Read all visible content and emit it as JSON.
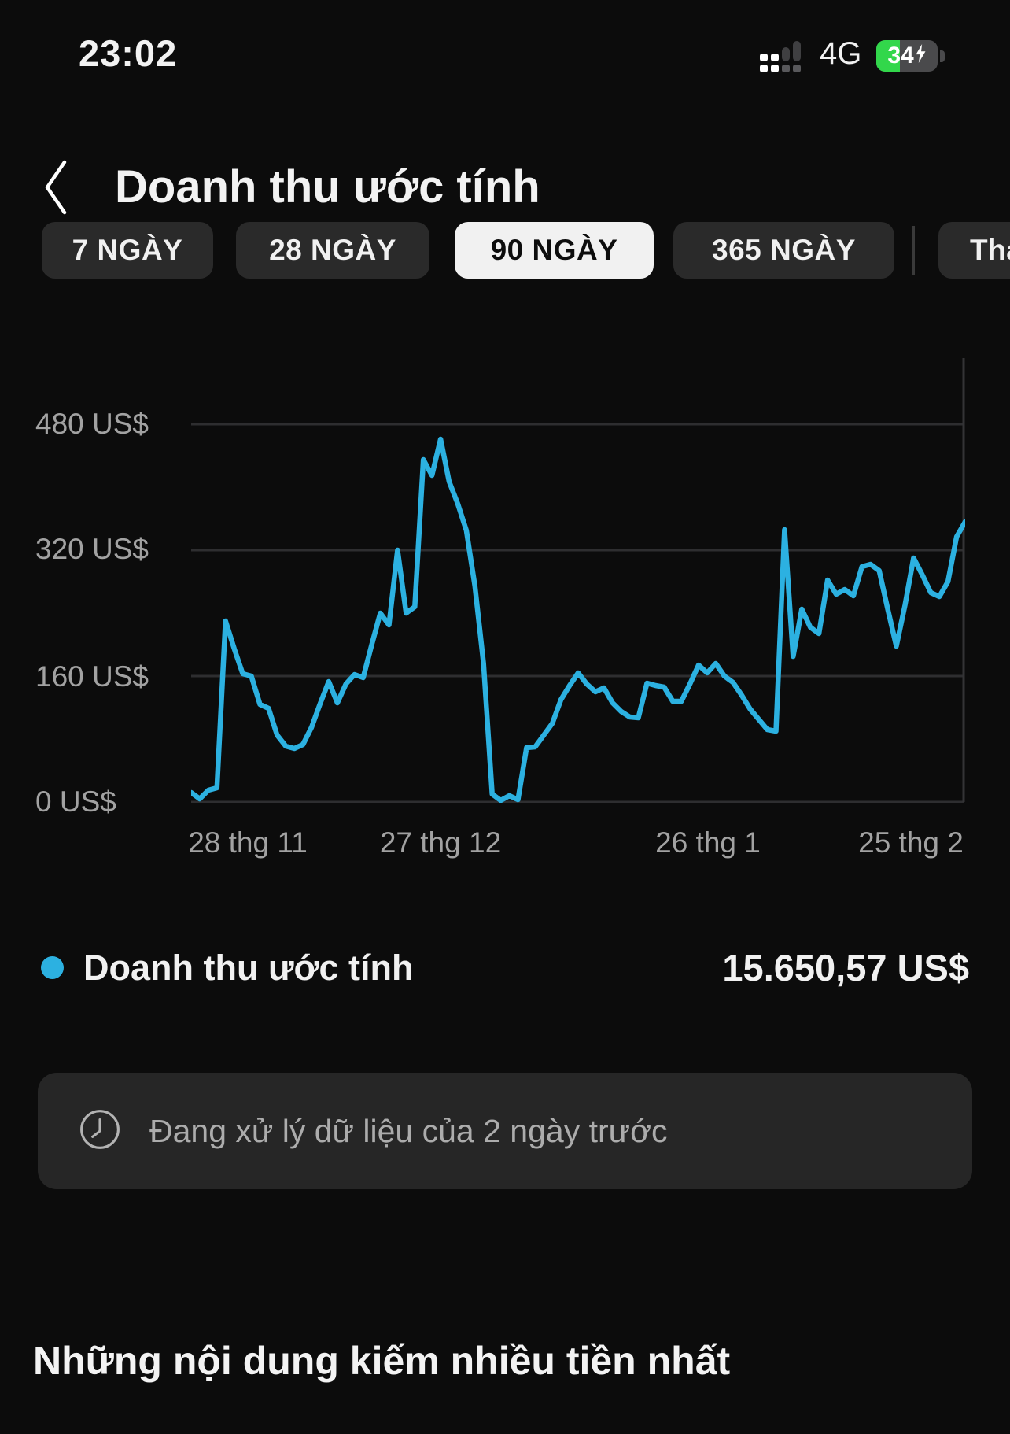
{
  "status_bar": {
    "time": "23:02",
    "network": "4G",
    "battery_percent": "34",
    "charging": true
  },
  "header": {
    "title": "Doanh thu ước tính"
  },
  "tabs": {
    "items": [
      {
        "label": "7 NGÀY",
        "selected": false
      },
      {
        "label": "28 NGÀY",
        "selected": false
      },
      {
        "label": "90 NGÀY",
        "selected": true
      },
      {
        "label": "365 NGÀY",
        "selected": false
      },
      {
        "label": "Tha",
        "selected": false,
        "clipped": true
      }
    ]
  },
  "chart_data": {
    "type": "line",
    "title": "Doanh thu ước tính",
    "period": "90 NGÀY",
    "unit": "US$",
    "ylim": [
      0,
      480
    ],
    "grid": true,
    "line_color": "#2cb1e1",
    "grid_color": "#2e2e30",
    "axis_text_color": "#a2a2a2",
    "y_ticks": [
      "480 US$",
      "320 US$",
      "160 US$",
      "0 US$"
    ],
    "y_tick_values": [
      480,
      320,
      160,
      0
    ],
    "x_ticks": [
      "28 thg 11",
      "27 thg 12",
      "26 thg 1",
      "25 thg 2"
    ],
    "x_tick_pos": [
      0.073,
      0.322,
      0.668,
      0.93
    ],
    "series": [
      {
        "name": "Doanh thu ước tính",
        "total": "15.650,57 US$",
        "values": [
          12,
          4,
          15,
          18,
          230,
          195,
          163,
          160,
          124,
          119,
          85,
          71,
          68,
          73,
          95,
          125,
          153,
          126,
          150,
          162,
          158,
          200,
          240,
          225,
          320,
          240,
          248,
          435,
          415,
          461,
          407,
          379,
          345,
          274,
          176,
          10,
          2,
          8,
          3,
          69,
          70,
          85,
          100,
          130,
          148,
          164,
          150,
          140,
          145,
          126,
          115,
          108,
          107,
          151,
          148,
          146,
          128,
          128,
          150,
          174,
          164,
          176,
          160,
          152,
          136,
          118,
          105,
          92,
          90,
          346,
          185,
          245,
          222,
          214,
          282,
          264,
          270,
          262,
          299,
          302,
          294,
          245,
          198,
          250,
          310,
          289,
          266,
          261,
          280,
          337,
          356
        ]
      }
    ]
  },
  "legend": {
    "label": "Doanh thu ước tính",
    "value": "15.650,57 US$"
  },
  "notice": {
    "text": "Đang xử lý dữ liệu của 2 ngày trước"
  },
  "section": {
    "title": "Những nội dung kiếm nhiều tiền nhất"
  }
}
